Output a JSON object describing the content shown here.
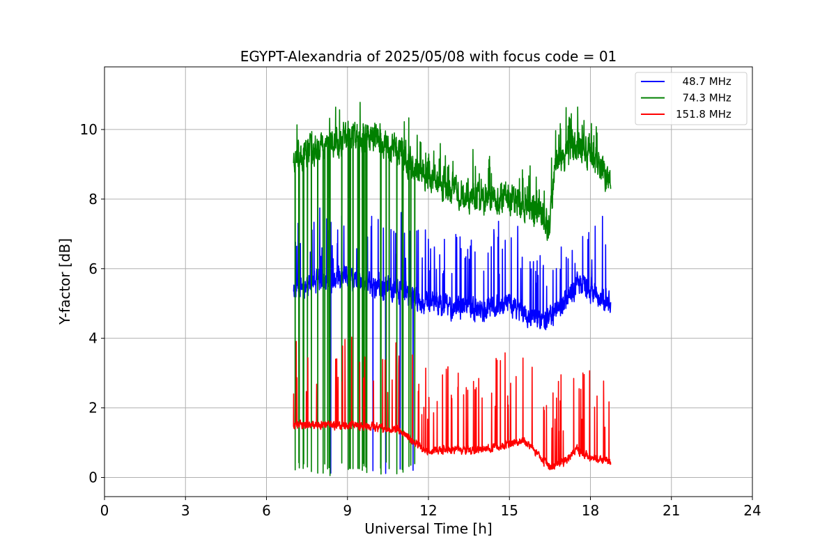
{
  "chart_data": {
    "type": "line",
    "title": "EGYPT-Alexandria of 2025/05/08 with focus code = 01",
    "xlabel": "Universal Time [h]",
    "ylabel": "Y-factor [dB]",
    "xlim": [
      0,
      24
    ],
    "ylim": [
      -0.55,
      11.8
    ],
    "xticks": [
      0,
      3,
      6,
      9,
      12,
      15,
      18,
      21,
      24
    ],
    "yticks": [
      0,
      2,
      4,
      6,
      8,
      10
    ],
    "grid": true,
    "legend_position": "top-right",
    "series": [
      {
        "name": "  48.7 MHz",
        "color": "#0000ff",
        "t_start": 7.0,
        "t_end": 18.75,
        "seed": 11,
        "noise": 0.35,
        "spike_rate": 0.045,
        "spike_amp": 2.2,
        "dropout_rate": 0.012,
        "trend": [
          [
            7.0,
            5.5
          ],
          [
            8.0,
            5.6
          ],
          [
            9.0,
            5.7
          ],
          [
            10.0,
            5.5
          ],
          [
            11.0,
            5.4
          ],
          [
            12.0,
            5.0
          ],
          [
            13.0,
            4.9
          ],
          [
            14.0,
            4.8
          ],
          [
            15.0,
            5.0
          ],
          [
            16.0,
            4.5
          ],
          [
            16.5,
            4.6
          ],
          [
            17.0,
            5.0
          ],
          [
            17.5,
            5.6
          ],
          [
            18.0,
            5.4
          ],
          [
            18.75,
            5.0
          ]
        ]
      },
      {
        "name": "  74.3 MHz",
        "color": "#008000",
        "t_start": 7.0,
        "t_end": 18.75,
        "seed": 23,
        "noise": 0.45,
        "spike_rate": 0.02,
        "spike_amp": 1.0,
        "dropout_rate": 0.055,
        "trend": [
          [
            7.0,
            9.2
          ],
          [
            8.0,
            9.6
          ],
          [
            9.0,
            9.8
          ],
          [
            10.0,
            9.8
          ],
          [
            11.0,
            9.3
          ],
          [
            12.0,
            8.6
          ],
          [
            13.0,
            8.3
          ],
          [
            14.0,
            8.0
          ],
          [
            15.0,
            8.0
          ],
          [
            16.0,
            7.7
          ],
          [
            16.5,
            7.2
          ],
          [
            16.7,
            9.1
          ],
          [
            17.5,
            9.6
          ],
          [
            18.0,
            9.3
          ],
          [
            18.75,
            8.5
          ]
        ]
      },
      {
        "name": "151.8 MHz",
        "color": "#ff0000",
        "t_start": 7.0,
        "t_end": 18.75,
        "seed": 37,
        "noise": 0.12,
        "spike_rate": 0.05,
        "spike_amp": 2.6,
        "dropout_rate": 0.0,
        "trend": [
          [
            7.0,
            1.5
          ],
          [
            8.0,
            1.5
          ],
          [
            9.0,
            1.5
          ],
          [
            10.0,
            1.45
          ],
          [
            11.0,
            1.35
          ],
          [
            11.5,
            1.0
          ],
          [
            12.0,
            0.75
          ],
          [
            13.0,
            0.8
          ],
          [
            14.0,
            0.8
          ],
          [
            15.0,
            0.95
          ],
          [
            15.5,
            1.1
          ],
          [
            16.0,
            0.7
          ],
          [
            16.5,
            0.3
          ],
          [
            17.0,
            0.45
          ],
          [
            17.5,
            0.8
          ],
          [
            18.0,
            0.55
          ],
          [
            18.75,
            0.45
          ]
        ]
      }
    ]
  }
}
